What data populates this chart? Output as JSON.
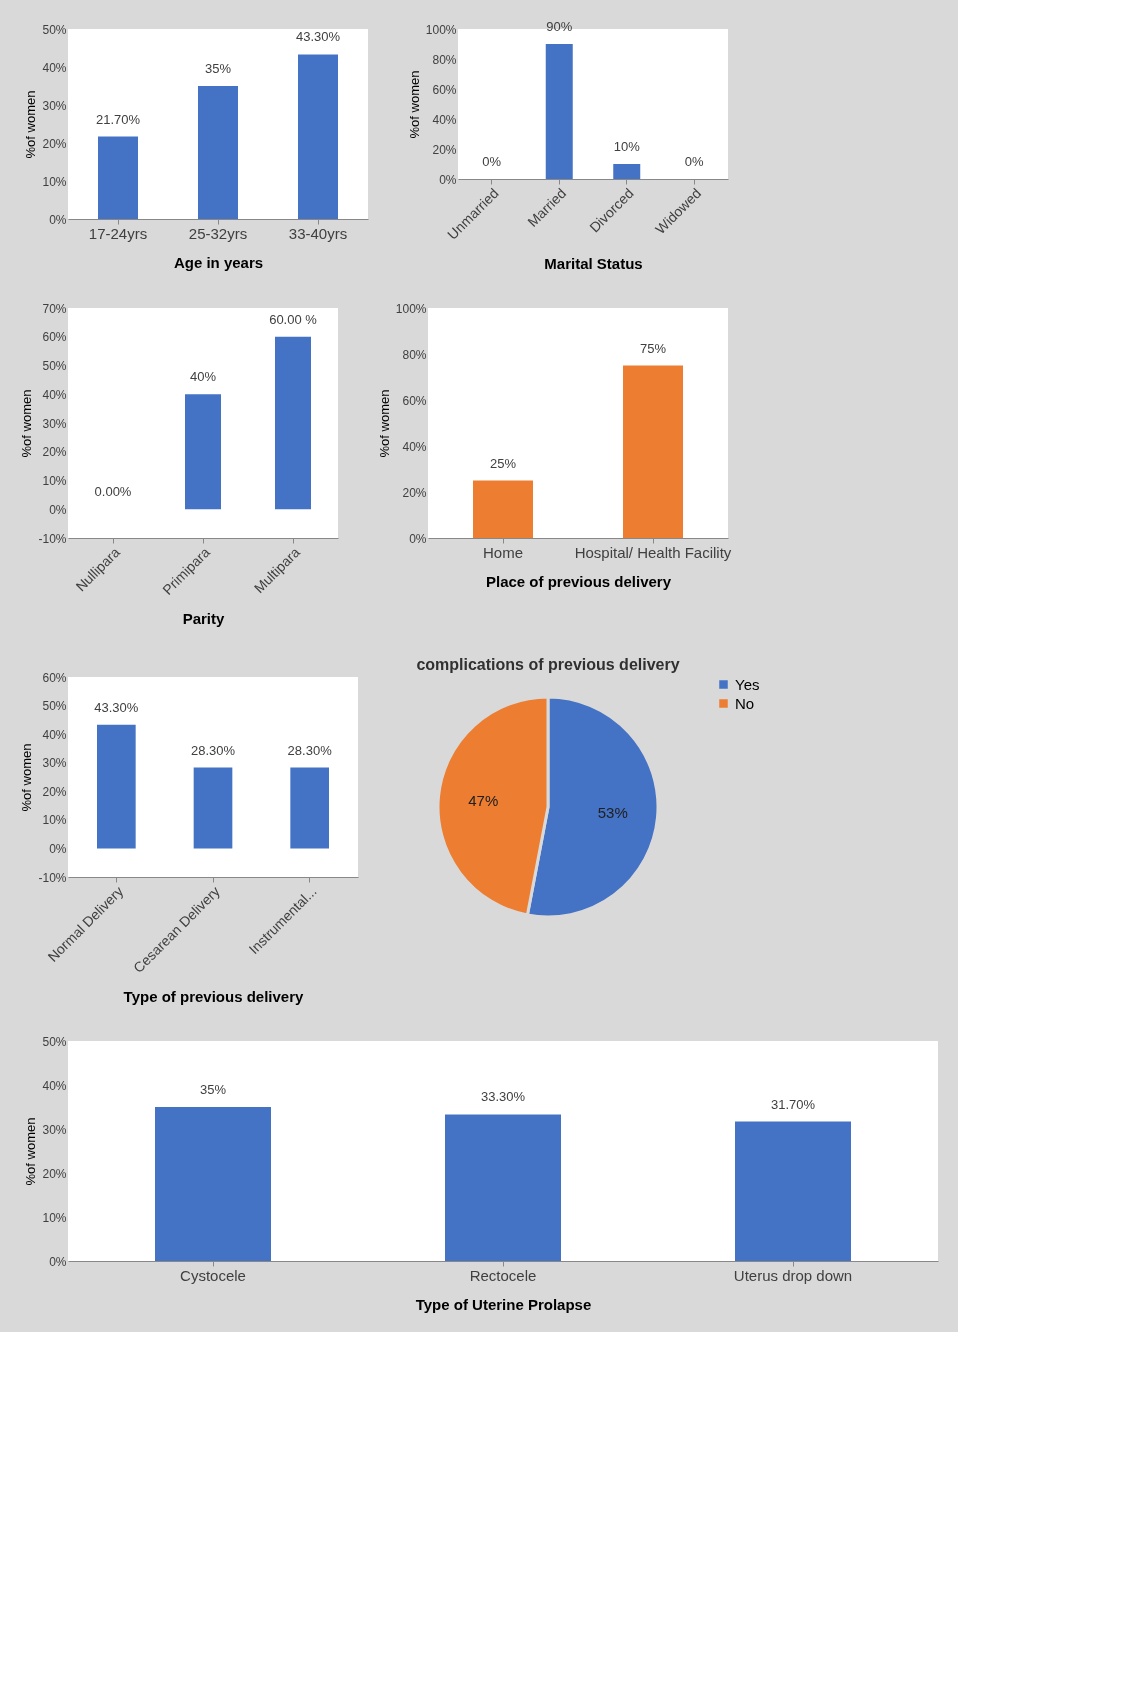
{
  "chart_data": [
    {
      "type": "bar",
      "xlabel": "Age in years",
      "ylabel": "%of women",
      "categories": [
        "17-24yrs",
        "25-32yrs",
        "33-40yrs"
      ],
      "values": [
        21.7,
        35,
        43.3
      ],
      "value_labels": [
        "21.70%",
        "35%",
        "43.30%"
      ],
      "color": "#4472c4",
      "ylim": [
        0,
        50
      ],
      "yticks": [
        {
          "value": 0,
          "label": "0%"
        },
        {
          "value": 10,
          "label": "10%"
        },
        {
          "value": 20,
          "label": "20%"
        },
        {
          "value": 30,
          "label": "30%"
        },
        {
          "value": 40,
          "label": "40%"
        },
        {
          "value": 50,
          "label": "50%"
        }
      ],
      "grid": false
    },
    {
      "type": "bar",
      "xlabel": "Marital Status",
      "ylabel": "%of women",
      "categories": [
        "Unmarried",
        "Married",
        "Divorced",
        "Widowed"
      ],
      "values": [
        0,
        90,
        10,
        0
      ],
      "value_labels": [
        "0%",
        "90%",
        "10%",
        "0%"
      ],
      "color": "#4472c4",
      "ylim": [
        0,
        100
      ],
      "yticks": [
        {
          "value": 0,
          "label": "0%"
        },
        {
          "value": 20,
          "label": "20%"
        },
        {
          "value": 40,
          "label": "40%"
        },
        {
          "value": 60,
          "label": "60%"
        },
        {
          "value": 80,
          "label": "80%"
        },
        {
          "value": 100,
          "label": "100%"
        }
      ],
      "grid": false
    },
    {
      "type": "bar",
      "xlabel": "Parity",
      "ylabel": "%of women",
      "categories": [
        "Nullipara",
        "Primipara",
        "Multipara"
      ],
      "values": [
        0,
        40,
        60
      ],
      "value_labels": [
        "0.00%",
        "40%",
        "60.00 %"
      ],
      "color": "#4472c4",
      "ylim": [
        -10,
        70
      ],
      "yticks": [
        {
          "value": -10,
          "label": "-10%"
        },
        {
          "value": 0,
          "label": "0%"
        },
        {
          "value": 10,
          "label": "10%"
        },
        {
          "value": 20,
          "label": "20%"
        },
        {
          "value": 30,
          "label": "30%"
        },
        {
          "value": 40,
          "label": "40%"
        },
        {
          "value": 50,
          "label": "50%"
        },
        {
          "value": 60,
          "label": "60%"
        },
        {
          "value": 70,
          "label": "70%"
        }
      ],
      "grid": false
    },
    {
      "type": "bar",
      "xlabel": "Place of previous delivery",
      "ylabel": "%of women",
      "categories": [
        "Home",
        "Hospital/ Health Facility"
      ],
      "values": [
        25,
        75
      ],
      "value_labels": [
        "25%",
        "75%"
      ],
      "color": "#ed7d31",
      "ylim": [
        0,
        100
      ],
      "yticks": [
        {
          "value": 0,
          "label": "0%"
        },
        {
          "value": 20,
          "label": "20%"
        },
        {
          "value": 40,
          "label": "40%"
        },
        {
          "value": 60,
          "label": "60%"
        },
        {
          "value": 80,
          "label": "80%"
        },
        {
          "value": 100,
          "label": "100%"
        }
      ],
      "grid": false
    },
    {
      "type": "bar",
      "xlabel": "Type of previous delivery",
      "ylabel": "%of women",
      "categories": [
        "Normal Delivery",
        "Cesarean Delivery",
        "Instrumental..."
      ],
      "values": [
        43.3,
        28.3,
        28.3
      ],
      "value_labels": [
        "43.30%",
        "28.30%",
        "28.30%"
      ],
      "color": "#4472c4",
      "ylim": [
        -10,
        60
      ],
      "yticks": [
        {
          "value": -10,
          "label": "-10%"
        },
        {
          "value": 0,
          "label": "0%"
        },
        {
          "value": 10,
          "label": "10%"
        },
        {
          "value": 20,
          "label": "20%"
        },
        {
          "value": 30,
          "label": "30%"
        },
        {
          "value": 40,
          "label": "40%"
        },
        {
          "value": 50,
          "label": "50%"
        },
        {
          "value": 60,
          "label": "60%"
        }
      ],
      "grid": false
    },
    {
      "type": "pie",
      "title": "complications of previous delivery",
      "categories": [
        "Yes",
        "No"
      ],
      "values": [
        53,
        47
      ],
      "value_labels": [
        "53%",
        "47%"
      ],
      "colors": [
        "#4472c4",
        "#ed7d31"
      ],
      "legend": "right"
    },
    {
      "type": "bar",
      "xlabel": "Type of Uterine Prolapse",
      "ylabel": "%of women",
      "categories": [
        "Cystocele",
        "Rectocele",
        "Uterus drop down"
      ],
      "values": [
        35,
        33.3,
        31.7
      ],
      "value_labels": [
        "35%",
        "33.30%",
        "31.70%"
      ],
      "color": "#4472c4",
      "ylim": [
        0,
        50
      ],
      "yticks": [
        {
          "value": 0,
          "label": "0%"
        },
        {
          "value": 10,
          "label": "10%"
        },
        {
          "value": 20,
          "label": "20%"
        },
        {
          "value": 30,
          "label": "30%"
        },
        {
          "value": 40,
          "label": "40%"
        },
        {
          "value": 50,
          "label": "50%"
        }
      ],
      "grid": false
    }
  ]
}
